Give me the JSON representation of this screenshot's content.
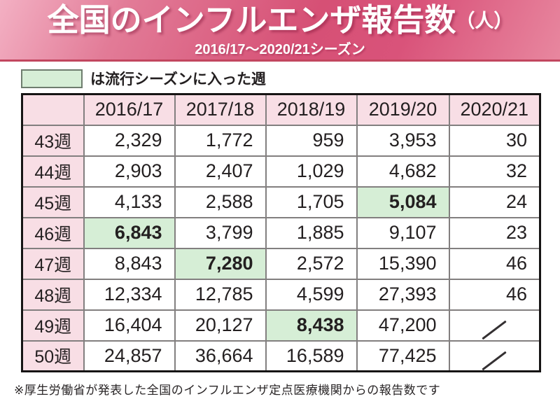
{
  "banner": {
    "title": "全国のインフルエンザ報告数",
    "title_unit": "（人）",
    "subtitle": "2016/17～2020/21シーズン"
  },
  "legend": {
    "label": "は流行シーズンに入った週",
    "swatch_color": "#d6eed6"
  },
  "table": {
    "columns": [
      "",
      "2016/17",
      "2017/18",
      "2018/19",
      "2019/20",
      "2020/21"
    ],
    "rows": [
      {
        "week": "43週",
        "values": [
          "2,329",
          "1,772",
          "959",
          "3,953",
          "30"
        ],
        "highlight_col": null
      },
      {
        "week": "44週",
        "values": [
          "2,903",
          "2,407",
          "1,029",
          "4,682",
          "32"
        ],
        "highlight_col": null
      },
      {
        "week": "45週",
        "values": [
          "4,133",
          "2,588",
          "1,705",
          "5,084",
          "24"
        ],
        "highlight_col": 3
      },
      {
        "week": "46週",
        "values": [
          "6,843",
          "3,799",
          "1,885",
          "9,107",
          "23"
        ],
        "highlight_col": 0
      },
      {
        "week": "47週",
        "values": [
          "8,843",
          "7,280",
          "2,572",
          "15,390",
          "46"
        ],
        "highlight_col": 1
      },
      {
        "week": "48週",
        "values": [
          "12,334",
          "12,785",
          "4,599",
          "27,393",
          "46"
        ],
        "highlight_col": null
      },
      {
        "week": "49週",
        "values": [
          "16,404",
          "20,127",
          "8,438",
          "47,200",
          null
        ],
        "highlight_col": 2
      },
      {
        "week": "50週",
        "values": [
          "24,857",
          "36,664",
          "16,589",
          "77,425",
          null
        ],
        "highlight_col": null
      }
    ]
  },
  "footnote": "※厚生労働省が発表した全国のインフルエンザ定点医療機関からの報告数です",
  "colors": {
    "banner_gradient_light": "#f3b0c3",
    "banner_gradient_dark": "#d65075",
    "banner_border": "#c2465f",
    "header_cell_bg": "#f8dee5",
    "highlight_bg": "#d6eed6",
    "table_outer_border": "#161414",
    "table_inner_border": "#827f7f",
    "text": "#231f20"
  },
  "chart_data": {
    "type": "table",
    "title": "全国のインフルエンザ報告数（人）",
    "subtitle": "2016/17～2020/21シーズン",
    "categories": [
      "43週",
      "44週",
      "45週",
      "46週",
      "47週",
      "48週",
      "49週",
      "50週"
    ],
    "series": [
      {
        "name": "2016/17",
        "values": [
          2329,
          2903,
          4133,
          6843,
          8843,
          12334,
          16404,
          24857
        ],
        "epidemic_season_start_highlighted": "46週"
      },
      {
        "name": "2017/18",
        "values": [
          1772,
          2407,
          2588,
          3799,
          7280,
          12785,
          20127,
          36664
        ],
        "epidemic_season_start_highlighted": "47週"
      },
      {
        "name": "2018/19",
        "values": [
          959,
          1029,
          1705,
          1885,
          2572,
          4599,
          8438,
          16589
        ],
        "epidemic_season_start_highlighted": "49週"
      },
      {
        "name": "2019/20",
        "values": [
          3953,
          4682,
          5084,
          9107,
          15390,
          27393,
          47200,
          77425
        ],
        "epidemic_season_start_highlighted": "45週"
      },
      {
        "name": "2020/21",
        "values": [
          30,
          32,
          24,
          23,
          46,
          46,
          null,
          null
        ],
        "epidemic_season_start_highlighted": null
      }
    ],
    "legend_note": "は流行シーズンに入った週",
    "footnote": "※厚生労働省が発表した全国のインフルエンザ定点医療機関からの報告数です"
  }
}
